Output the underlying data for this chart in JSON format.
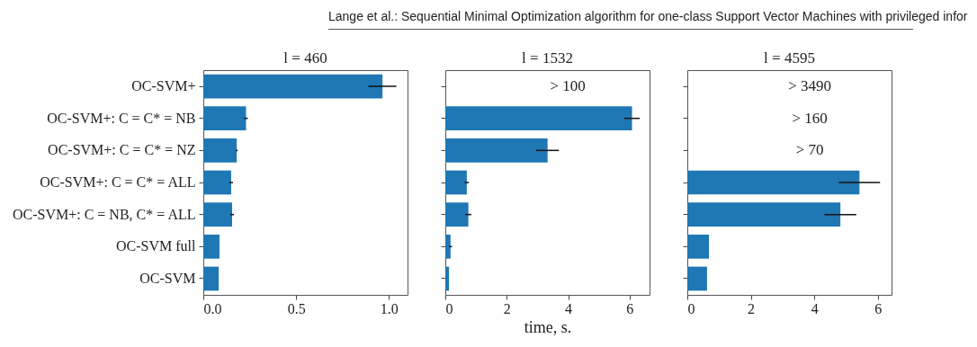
{
  "chart_data": [
    {
      "type": "bar",
      "orientation": "horizontal",
      "title": "l = 460",
      "annotations": [
        "Lange et al.: Sequential Minimal Optimization algorithm for one-class Support Vector Machines with privileged infor"
      ],
      "categories": [
        "OC-SVM+",
        "OC-SVM+:  C = C* = NB",
        "OC-SVM+:  C = C* = NZ",
        "OC-SVM+:  C = C* = ALL",
        "OC-SVM+:  C = NB, C* = ALL",
        "OC-SVM full",
        "OC-SVM"
      ],
      "color": "#1f77b4",
      "values": [
        0.965,
        0.23,
        0.18,
        0.15,
        0.155,
        0.087,
        0.083
      ],
      "errors": [
        0.075,
        0.01,
        0.005,
        0.01,
        0.01,
        null,
        null
      ],
      "xlim": [
        0,
        1.1
      ],
      "xticks": [
        {
          "value": 0,
          "label": "0.0"
        },
        {
          "value": 0.5,
          "label": "0.5"
        },
        {
          "value": 1,
          "label": "1.0"
        }
      ]
    },
    {
      "type": "bar",
      "orientation": "horizontal",
      "title": "l = 1532",
      "xlabel": "time, s.",
      "tick_labels": "x",
      "categories": [
        null,
        null,
        null,
        null,
        null,
        null,
        null
      ],
      "color": "#1f77b4",
      "values": [
        null,
        6.08,
        3.33,
        0.7,
        0.75,
        0.17,
        0.12
      ],
      "errors": [
        null,
        0.25,
        0.37,
        0.07,
        0.1,
        0.05,
        null
      ],
      "annotations": [
        "> 100"
      ],
      "xlim": [
        0,
        6.65
      ],
      "xticks": [
        0,
        2,
        4,
        6
      ]
    },
    {
      "type": "bar",
      "orientation": "horizontal",
      "title": "l = 4595",
      "tick_labels": "x",
      "categories": [
        null,
        null,
        null,
        null,
        null,
        null,
        null
      ],
      "color": "#1f77b4",
      "values": [
        null,
        null,
        null,
        5.42,
        4.82,
        0.68,
        0.62
      ],
      "errors": [
        null,
        null,
        null,
        0.65,
        0.5,
        null,
        null
      ],
      "annotations": [
        "> 3490",
        "> 160",
        "> 70"
      ],
      "xlim": [
        0,
        6.43
      ],
      "xticks": [
        0,
        2,
        4,
        6
      ]
    }
  ]
}
